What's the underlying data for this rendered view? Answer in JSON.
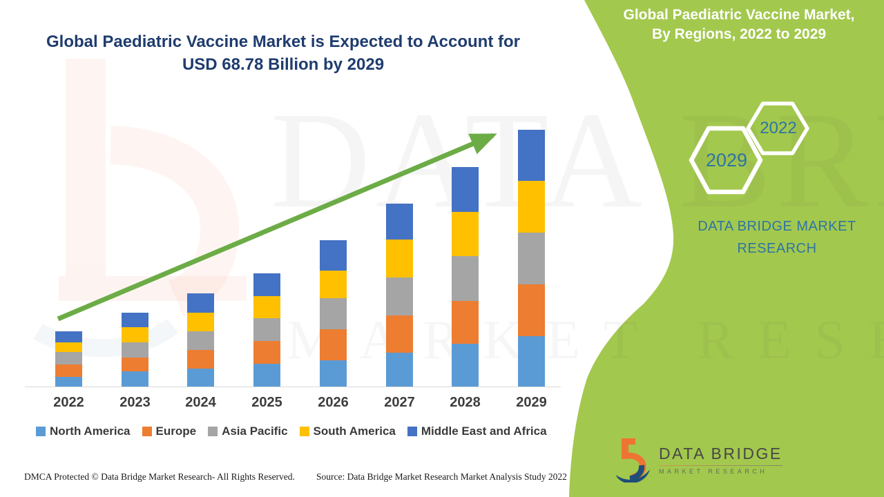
{
  "headline": {
    "line1": "Global Paediatric Vaccine Market is Expected to Account for",
    "line2": "USD 68.78 Billion by 2029"
  },
  "right_panel": {
    "panel_color": "#a3c84e",
    "title_line1": "Global Paediatric Vaccine Market,",
    "title_line2": "By Regions, 2022 to 2029",
    "hexagon_front_label": "2029",
    "hexagon_back_label": "2022",
    "brand_line1": "DATA BRIDGE MARKET",
    "brand_line2": "RESEARCH",
    "brand_text_color": "#2e74a4"
  },
  "watermark": {
    "line1": "DATA BRIDGE",
    "line2": "MARKET RESEARCH"
  },
  "footer": {
    "dmca": "DMCA Protected © Data Bridge Market Research- All Rights Reserved.",
    "source": "Source: Data Bridge Market Research Market Analysis Study 2022"
  },
  "logo": {
    "name": "DATA BRIDGE",
    "sub": "MARKET RESEARCH"
  },
  "chart_data": {
    "type": "bar",
    "stacked": true,
    "title": "Global Paediatric Vaccine Market, By Regions, 2022 to 2029",
    "unit": "USD Billion",
    "xlabel": "",
    "ylabel": "",
    "ylim": [
      0,
      70
    ],
    "grid": false,
    "legend_position": "bottom",
    "categories": [
      "2022",
      "2023",
      "2024",
      "2025",
      "2026",
      "2027",
      "2028",
      "2029"
    ],
    "series": [
      {
        "name": "North America",
        "color": "#5b9bd5",
        "values": [
          2.59,
          4.07,
          4.81,
          6.1,
          7.03,
          9.06,
          11.46,
          13.5
        ]
      },
      {
        "name": "Europe",
        "color": "#ed7d31",
        "values": [
          3.33,
          3.7,
          4.99,
          6.1,
          8.32,
          9.98,
          11.46,
          13.87
        ]
      },
      {
        "name": "Asia Pacific",
        "color": "#a5a5a5",
        "values": [
          3.33,
          4.07,
          4.99,
          6.1,
          8.32,
          10.17,
          12.02,
          13.87
        ]
      },
      {
        "name": "South America",
        "color": "#ffc000",
        "values": [
          2.59,
          4.07,
          4.99,
          5.92,
          7.4,
          10.17,
          11.83,
          13.87
        ]
      },
      {
        "name": "Middle East and Africa",
        "color": "#4472c4",
        "values": [
          2.96,
          3.88,
          5.18,
          6.1,
          8.14,
          9.61,
          12.02,
          13.68
        ]
      }
    ],
    "totals": [
      14.8,
      19.79,
      24.96,
      30.32,
      39.21,
      48.99,
      58.79,
      68.78
    ],
    "annotations": [
      "Upward trend arrow from 2022 to 2029",
      "2029 total = USD 68.78 Billion"
    ],
    "arrow_color": "#6cac46"
  }
}
